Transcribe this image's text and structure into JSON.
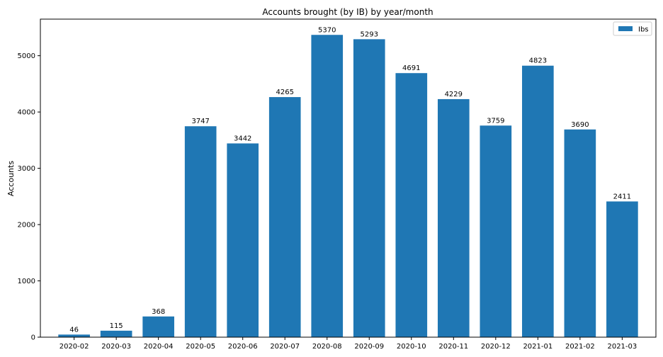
{
  "chart_data": {
    "type": "bar",
    "title": "Accounts brought (by IB) by year/month",
    "xlabel": "",
    "ylabel": "Accounts",
    "categories": [
      "2020-02",
      "2020-03",
      "2020-04",
      "2020-05",
      "2020-06",
      "2020-07",
      "2020-08",
      "2020-09",
      "2020-10",
      "2020-11",
      "2020-12",
      "2021-01",
      "2021-02",
      "2021-03"
    ],
    "series": [
      {
        "name": "Ibs",
        "color": "#1f77b4",
        "values": [
          46,
          115,
          368,
          3747,
          3442,
          4265,
          5370,
          5293,
          4691,
          4229,
          3759,
          4823,
          3690,
          2411
        ]
      }
    ],
    "data_labels": [
      "46",
      "115",
      "368",
      "3747",
      "3442",
      "4265",
      "5370",
      "5293",
      "4691",
      "4229",
      "3759",
      "4823",
      "3690",
      "2411"
    ],
    "yticks": [
      "0",
      "1000",
      "2000",
      "3000",
      "4000",
      "5000"
    ],
    "ylim": [
      0,
      5650
    ],
    "legend": {
      "position": "top-right",
      "label": "Ibs"
    },
    "grid": false
  }
}
